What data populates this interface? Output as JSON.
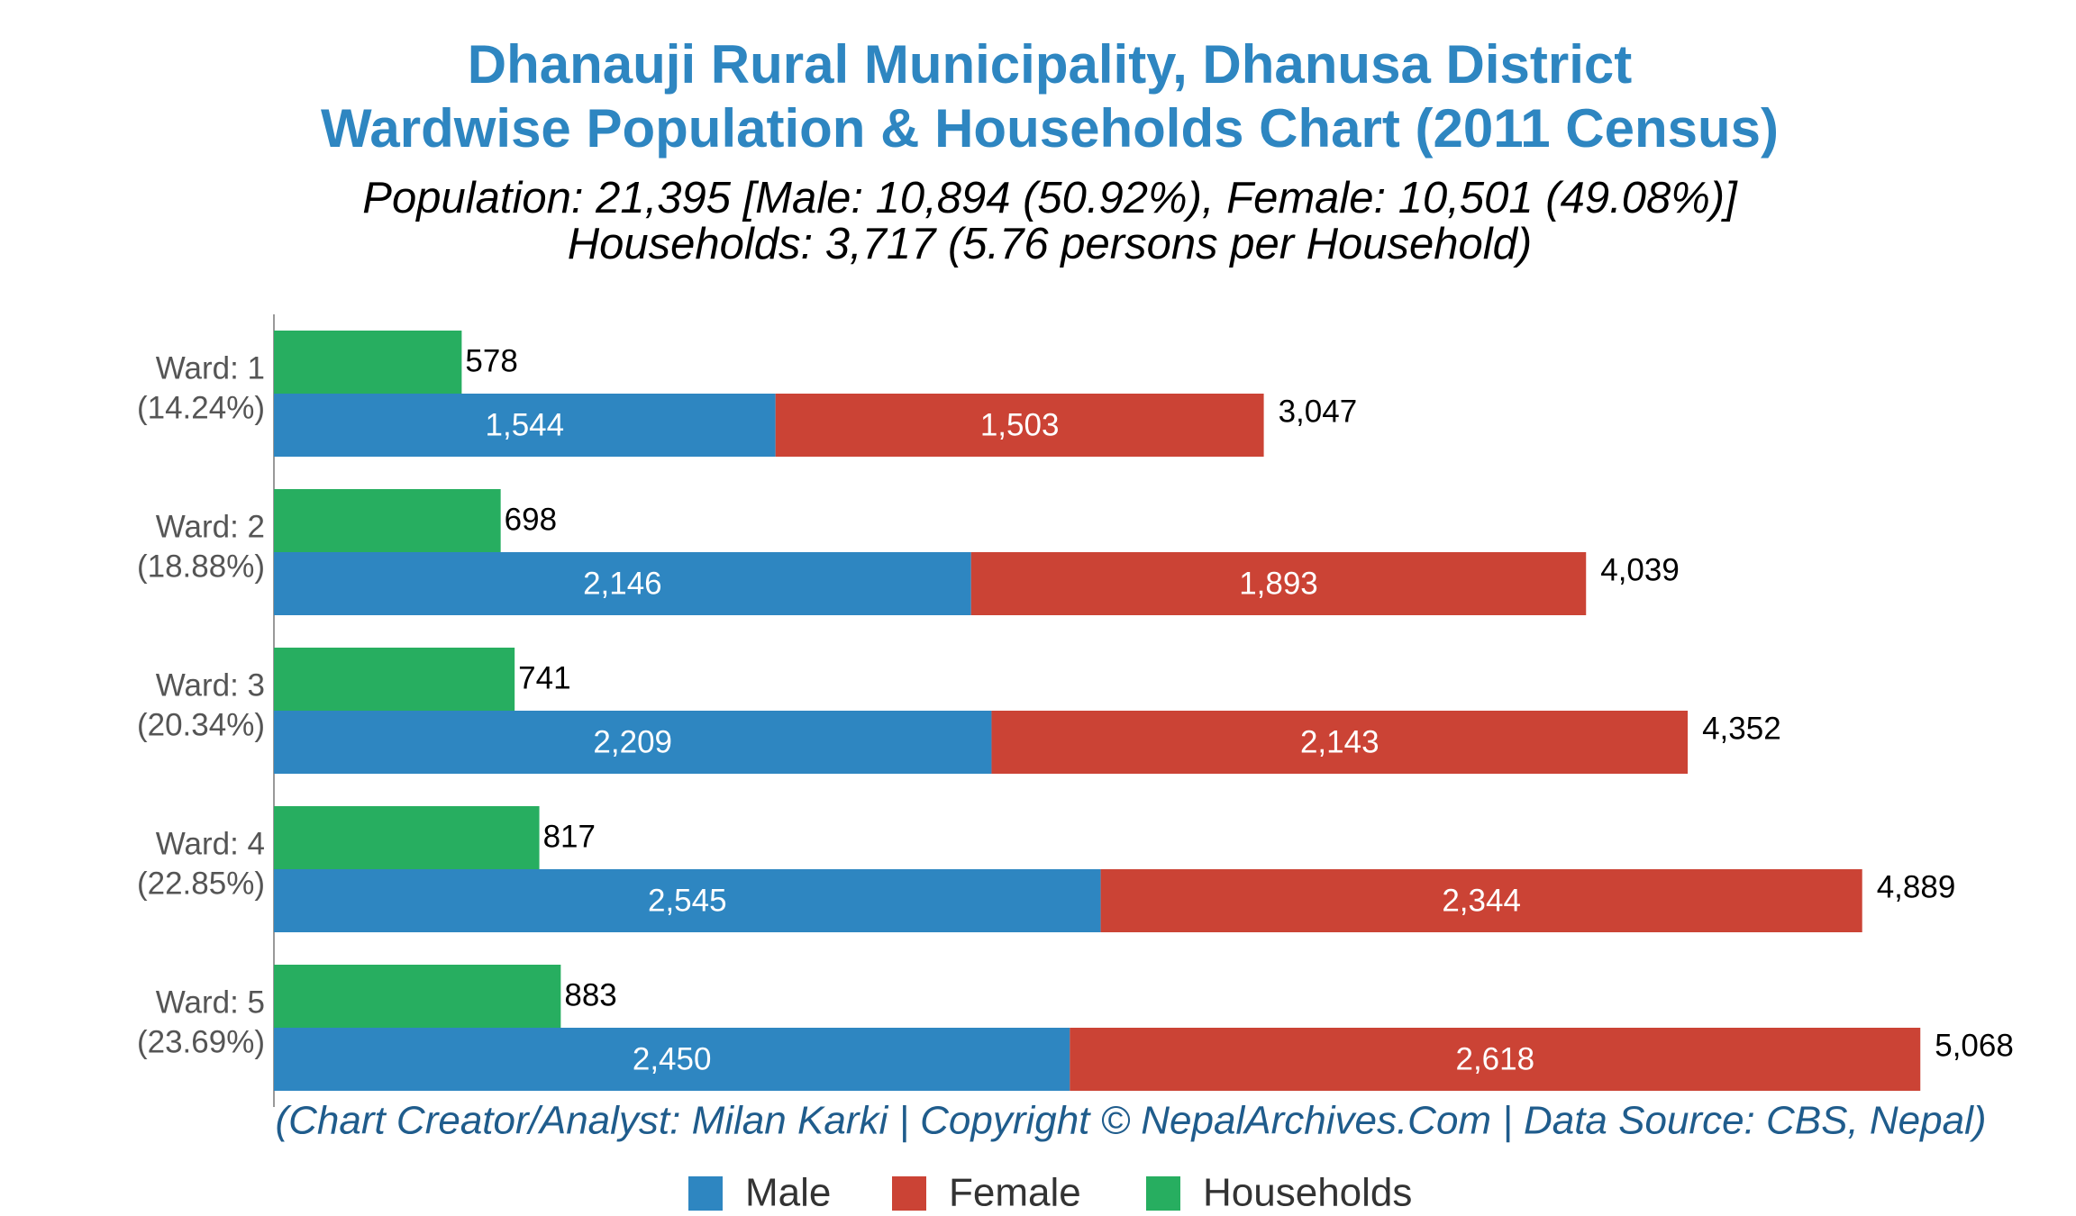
{
  "chart_data": {
    "type": "bar",
    "orientation": "horizontal",
    "title": [
      "Dhanauji Rural Municipality, Dhanusa District",
      "Wardwise Population & Households Chart (2011 Census)"
    ],
    "subtitle": [
      "Population: 21,395 [Male: 10,894 (50.92%), Female: 10,501 (49.08%)]",
      "Households: 3,717 (5.76 persons per Household)"
    ],
    "caption": "(Chart Creator/Analyst: Milan Karki | Copyright © NepalArchives.Com | Data Source: CBS, Nepal)",
    "categories": [
      "Ward: 1",
      "Ward: 2",
      "Ward: 3",
      "Ward: 4",
      "Ward: 5"
    ],
    "category_shares": [
      14.24,
      18.88,
      20.34,
      22.85,
      23.69
    ],
    "category_share_labels": [
      "(14.24%)",
      "(18.88%)",
      "(20.34%)",
      "(22.85%)",
      "(23.69%)"
    ],
    "xlim": [
      0,
      5500
    ],
    "series": [
      {
        "name": "Male",
        "color": "#2e86c1",
        "stack": "population",
        "values": [
          1544,
          2146,
          2209,
          2545,
          2450
        ],
        "value_labels": [
          "1,544",
          "2,146",
          "2,209",
          "2,545",
          "2,450"
        ]
      },
      {
        "name": "Female",
        "color": "#cb4335",
        "stack": "population",
        "values": [
          1503,
          1893,
          2143,
          2344,
          2618
        ],
        "value_labels": [
          "1,503",
          "1,893",
          "2,143",
          "2,344",
          "2,618"
        ]
      },
      {
        "name": "Households",
        "color": "#27ae60",
        "stack": "households",
        "values": [
          578,
          698,
          741,
          817,
          883
        ],
        "value_labels": [
          "578",
          "698",
          "741",
          "817",
          "883"
        ]
      }
    ],
    "totals": [
      3047,
      4039,
      4352,
      4889,
      5068
    ],
    "total_labels": [
      "3,047",
      "4,039",
      "4,352",
      "4,889",
      "5,068"
    ],
    "legend": "bottom"
  }
}
